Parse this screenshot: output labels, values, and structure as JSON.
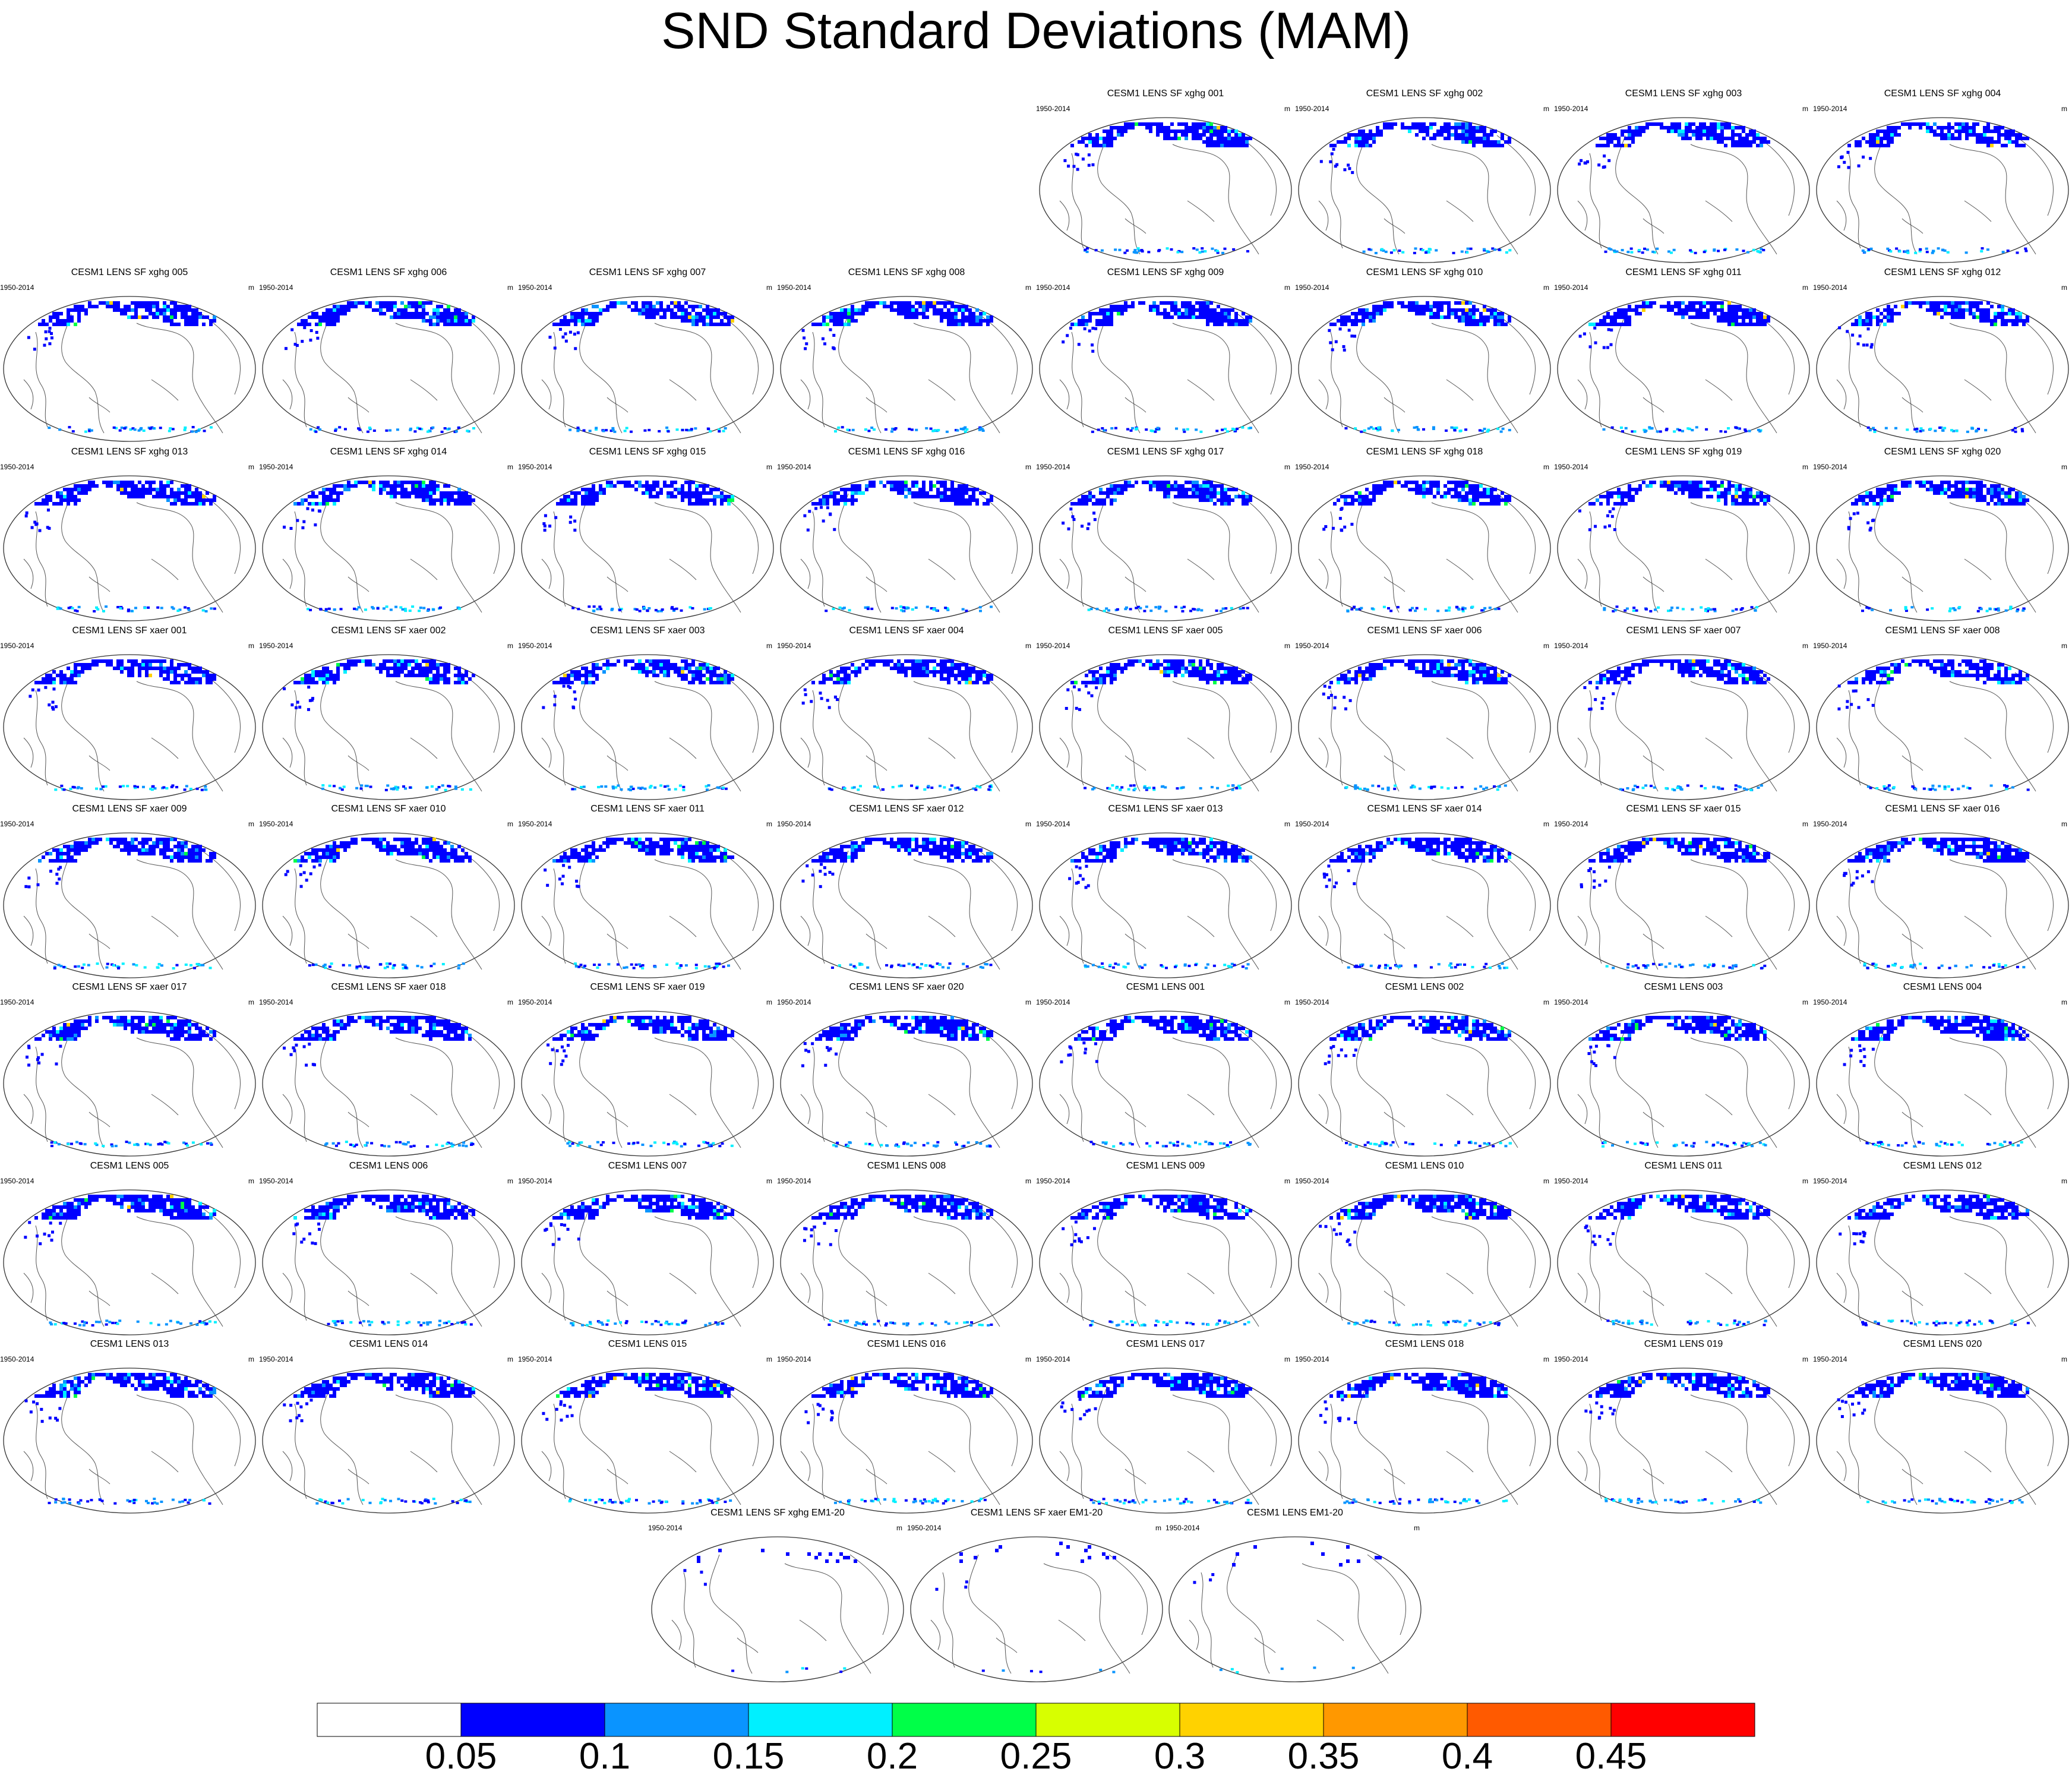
{
  "title": "SND Standard Deviations (MAM)",
  "panel_period": "1950-2014",
  "panel_unit": "m",
  "panels": [
    "CESM1 LENS SF xghg 001",
    "CESM1 LENS SF xghg 002",
    "CESM1 LENS SF xghg 003",
    "CESM1 LENS SF xghg 004",
    "CESM1 LENS SF xghg 005",
    "CESM1 LENS SF xghg 006",
    "CESM1 LENS SF xghg 007",
    "CESM1 LENS SF xghg 008",
    "CESM1 LENS SF xghg 009",
    "CESM1 LENS SF xghg 010",
    "CESM1 LENS SF xghg 011",
    "CESM1 LENS SF xghg 012",
    "CESM1 LENS SF xghg 013",
    "CESM1 LENS SF xghg 014",
    "CESM1 LENS SF xghg 015",
    "CESM1 LENS SF xghg 016",
    "CESM1 LENS SF xghg 017",
    "CESM1 LENS SF xghg 018",
    "CESM1 LENS SF xghg 019",
    "CESM1 LENS SF xghg 020",
    "CESM1 LENS SF xaer 001",
    "CESM1 LENS SF xaer 002",
    "CESM1 LENS SF xaer 003",
    "CESM1 LENS SF xaer 004",
    "CESM1 LENS SF xaer 005",
    "CESM1 LENS SF xaer 006",
    "CESM1 LENS SF xaer 007",
    "CESM1 LENS SF xaer 008",
    "CESM1 LENS SF xaer 009",
    "CESM1 LENS SF xaer 010",
    "CESM1 LENS SF xaer 011",
    "CESM1 LENS SF xaer 012",
    "CESM1 LENS SF xaer 013",
    "CESM1 LENS SF xaer 014",
    "CESM1 LENS SF xaer 015",
    "CESM1 LENS SF xaer 016",
    "CESM1 LENS SF xaer 017",
    "CESM1 LENS SF xaer 018",
    "CESM1 LENS SF xaer 019",
    "CESM1 LENS SF xaer 020",
    "CESM1 LENS 001",
    "CESM1 LENS 002",
    "CESM1 LENS 003",
    "CESM1 LENS 004",
    "CESM1 LENS 005",
    "CESM1 LENS 006",
    "CESM1 LENS 007",
    "CESM1 LENS 008",
    "CESM1 LENS 009",
    "CESM1 LENS 010",
    "CESM1 LENS 011",
    "CESM1 LENS 012",
    "CESM1 LENS 013",
    "CESM1 LENS 014",
    "CESM1 LENS 015",
    "CESM1 LENS 016",
    "CESM1 LENS 017",
    "CESM1 LENS 018",
    "CESM1 LENS 019",
    "CESM1 LENS 020",
    "CESM1 LENS SF xghg EM1-20",
    "CESM1 LENS SF xaer EM1-20",
    "CESM1 LENS EM1-20"
  ],
  "colors": {
    "snow_dominant": "#0000ff",
    "coastline": "#555555",
    "ocean": "#ffffff"
  },
  "chart_data": {
    "type": "heatmap",
    "projection": "global map (Robinson-like), centered on the Pacific",
    "colorbar": {
      "boundaries": [
        "0.05",
        "0.1",
        "0.15",
        "0.2",
        "0.25",
        "0.3",
        "0.35",
        "0.4",
        "0.45"
      ],
      "colors": [
        "#ffffff",
        "#0000ff",
        "#0a94ff",
        "#00f0ff",
        "#00ff48",
        "#d7ff00",
        "#ffd200",
        "#ff9800",
        "#ff5a00",
        "#ff0000"
      ],
      "placement": "bottom"
    },
    "field": "SND standard deviation, MAM, 1950-2014, units m; values mostly 0.05–0.15 over the Northern Hemisphere high latitudes and along the Antarctic coast; ensemble means mostly below 0.05"
  }
}
